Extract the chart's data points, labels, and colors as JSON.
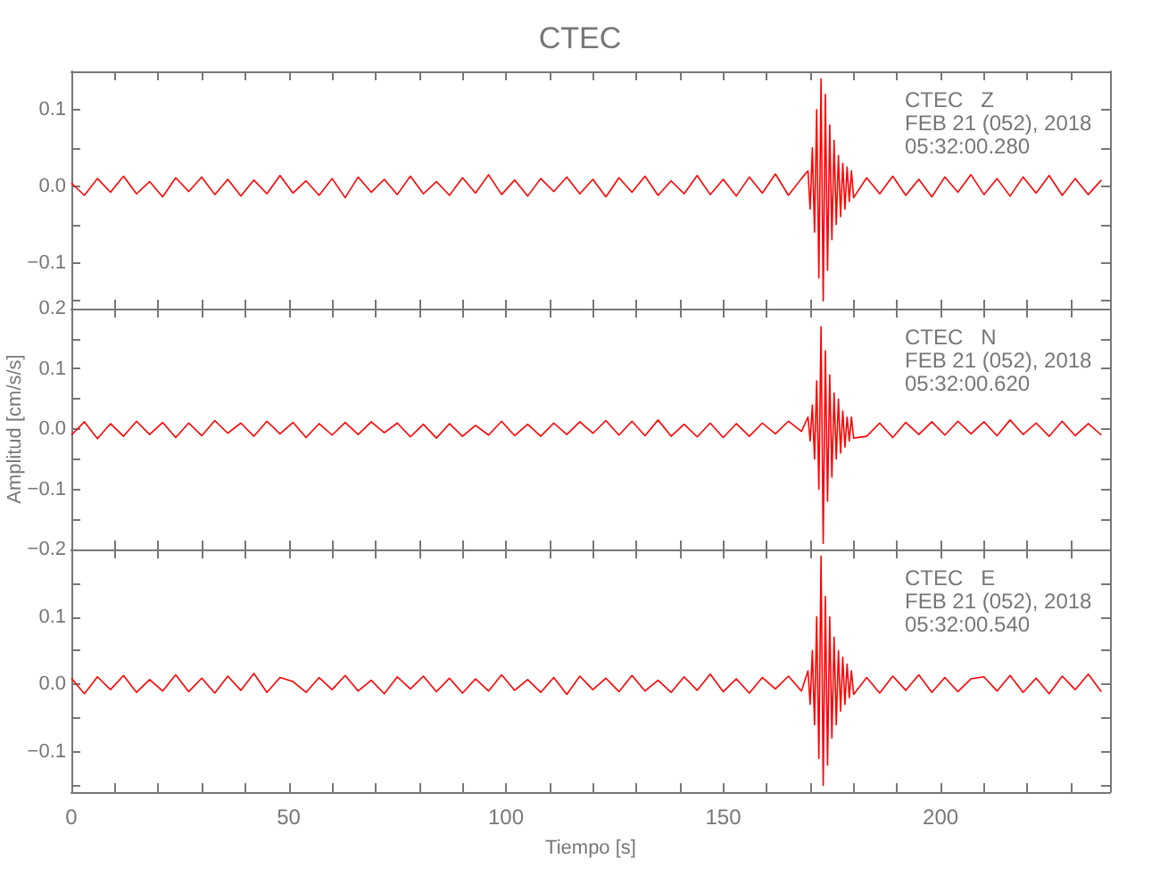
{
  "chart_data": [
    {
      "type": "line",
      "title": "CTEC",
      "tick_labels": "y",
      "annotations": [
        "CTEC   Z",
        "FEB 21 (052), 2018",
        "05:32:00.280"
      ],
      "x": [
        0,
        3,
        6,
        9,
        12,
        15,
        18,
        21,
        24,
        27,
        30,
        33,
        36,
        39,
        42,
        45,
        48,
        51,
        54,
        57,
        60,
        63,
        66,
        69,
        72,
        75,
        78,
        81,
        84,
        87,
        90,
        93,
        96,
        99,
        102,
        105,
        108,
        111,
        114,
        117,
        120,
        123,
        126,
        129,
        132,
        135,
        138,
        141,
        144,
        147,
        150,
        153,
        156,
        159,
        162,
        165,
        168,
        169.5,
        170,
        170.5,
        171,
        171.5,
        172,
        172.5,
        173,
        173.5,
        174,
        174.5,
        175,
        175.5,
        176,
        176.5,
        177,
        177.5,
        178,
        178.5,
        179,
        179.5,
        180,
        183,
        186,
        189,
        192,
        195,
        198,
        201,
        204,
        207,
        210,
        213,
        216,
        219,
        222,
        225,
        228,
        231,
        234,
        237
      ],
      "series": [
        {
          "color": "#ff0000",
          "values": [
            0.004,
            -0.012,
            0.01,
            -0.008,
            0.013,
            -0.01,
            0.006,
            -0.014,
            0.011,
            -0.007,
            0.012,
            -0.011,
            0.009,
            -0.013,
            0.008,
            -0.01,
            0.014,
            -0.009,
            0.007,
            -0.012,
            0.01,
            -0.015,
            0.012,
            -0.008,
            0.009,
            -0.011,
            0.013,
            -0.01,
            0.006,
            -0.012,
            0.011,
            -0.009,
            0.015,
            -0.011,
            0.008,
            -0.013,
            0.01,
            -0.007,
            0.012,
            -0.01,
            0.009,
            -0.014,
            0.011,
            -0.008,
            0.013,
            -0.012,
            0.007,
            -0.01,
            0.014,
            -0.011,
            0.009,
            -0.013,
            0.012,
            -0.009,
            0.016,
            -0.012,
            0.01,
            0.02,
            -0.03,
            0.05,
            -0.06,
            0.1,
            -0.12,
            0.14,
            -0.15,
            0.12,
            -0.11,
            0.08,
            -0.07,
            0.06,
            -0.05,
            0.04,
            -0.04,
            0.03,
            -0.03,
            0.025,
            -0.02,
            0.02,
            -0.015,
            0.011,
            -0.01,
            0.013,
            -0.012,
            0.009,
            -0.014,
            0.012,
            -0.008,
            0.015,
            -0.011,
            0.01,
            -0.013,
            0.012,
            -0.009,
            0.014,
            -0.012,
            0.01,
            -0.011,
            0.008
          ]
        }
      ],
      "xlim": [
        0,
        239
      ],
      "xticks": [
        0,
        {
          "value": 10,
          "label": null
        },
        {
          "value": 20,
          "label": null
        },
        {
          "value": 30,
          "label": null
        },
        {
          "value": 40,
          "label": null
        },
        50,
        {
          "value": 60,
          "label": null
        },
        {
          "value": 70,
          "label": null
        },
        {
          "value": 80,
          "label": null
        },
        {
          "value": 90,
          "label": null
        },
        100,
        {
          "value": 110,
          "label": null
        },
        {
          "value": 120,
          "label": null
        },
        {
          "value": 130,
          "label": null
        },
        {
          "value": 140,
          "label": null
        },
        150,
        {
          "value": 160,
          "label": null
        },
        {
          "value": 170,
          "label": null
        },
        {
          "value": 180,
          "label": null
        },
        {
          "value": 190,
          "label": null
        },
        200,
        {
          "value": 210,
          "label": null
        },
        {
          "value": 220,
          "label": null
        },
        {
          "value": 230,
          "label": null
        }
      ],
      "ylim": [
        -0.16,
        0.15
      ],
      "yticks": [
        {
          "value": -0.15,
          "label": null
        },
        {
          "value": -0.1,
          "label": "−0.1"
        },
        {
          "value": -0.05,
          "label": null
        },
        {
          "value": 0,
          "label": "0.0"
        },
        {
          "value": 0.05,
          "label": null
        },
        {
          "value": 0.1,
          "label": "0.1"
        }
      ]
    },
    {
      "type": "line",
      "ylabel": "Amplitud [cm/s/s]",
      "tick_labels": "y",
      "annotations": [
        "CTEC   N",
        "FEB 21 (052), 2018",
        "05:32:00.620"
      ],
      "x": [
        0,
        3,
        6,
        9,
        12,
        15,
        18,
        21,
        24,
        27,
        30,
        33,
        36,
        39,
        42,
        45,
        48,
        51,
        54,
        57,
        60,
        63,
        66,
        69,
        72,
        75,
        78,
        81,
        84,
        87,
        90,
        93,
        96,
        99,
        102,
        105,
        108,
        111,
        114,
        117,
        120,
        123,
        126,
        129,
        132,
        135,
        138,
        141,
        144,
        147,
        150,
        153,
        156,
        159,
        162,
        165,
        168,
        169.5,
        170,
        170.5,
        171,
        171.5,
        172,
        172.5,
        173,
        173.5,
        174,
        174.5,
        175,
        175.5,
        176,
        176.5,
        177,
        177.5,
        178,
        178.5,
        179,
        179.5,
        180,
        183,
        186,
        189,
        192,
        195,
        198,
        201,
        204,
        207,
        210,
        213,
        216,
        219,
        222,
        225,
        228,
        231,
        234,
        237
      ],
      "series": [
        {
          "color": "#ff0000",
          "values": [
            -0.01,
            0.012,
            -0.016,
            0.009,
            -0.012,
            0.013,
            -0.009,
            0.011,
            -0.014,
            0.01,
            -0.011,
            0.014,
            -0.007,
            0.01,
            -0.012,
            0.013,
            -0.008,
            0.011,
            -0.014,
            0.009,
            -0.01,
            0.011,
            -0.009,
            0.012,
            -0.006,
            0.01,
            -0.013,
            0.008,
            -0.015,
            0.009,
            -0.012,
            0.006,
            -0.01,
            0.013,
            -0.011,
            0.008,
            -0.012,
            0.01,
            -0.009,
            0.012,
            -0.007,
            0.014,
            -0.01,
            0.013,
            -0.011,
            0.015,
            -0.012,
            0.008,
            -0.013,
            0.01,
            -0.014,
            0.009,
            -0.012,
            0.01,
            -0.008,
            0.013,
            -0.004,
            0.02,
            -0.02,
            0.04,
            -0.05,
            0.08,
            -0.1,
            0.17,
            -0.19,
            0.13,
            -0.12,
            0.09,
            -0.08,
            0.06,
            -0.05,
            0.05,
            -0.04,
            0.03,
            -0.03,
            0.02,
            -0.02,
            0.02,
            -0.015,
            -0.012,
            0.01,
            -0.014,
            0.011,
            -0.009,
            0.012,
            -0.01,
            0.013,
            -0.008,
            0.012,
            -0.011,
            0.015,
            -0.009,
            0.01,
            -0.012,
            0.013,
            -0.011,
            0.009,
            -0.01
          ]
        }
      ],
      "xlim": [
        0,
        239
      ],
      "xticks": [
        0,
        {
          "value": 10,
          "label": null
        },
        {
          "value": 20,
          "label": null
        },
        {
          "value": 30,
          "label": null
        },
        {
          "value": 40,
          "label": null
        },
        50,
        {
          "value": 60,
          "label": null
        },
        {
          "value": 70,
          "label": null
        },
        {
          "value": 80,
          "label": null
        },
        {
          "value": 90,
          "label": null
        },
        100,
        {
          "value": 110,
          "label": null
        },
        {
          "value": 120,
          "label": null
        },
        {
          "value": 130,
          "label": null
        },
        {
          "value": 140,
          "label": null
        },
        150,
        {
          "value": 160,
          "label": null
        },
        {
          "value": 170,
          "label": null
        },
        {
          "value": 180,
          "label": null
        },
        {
          "value": 190,
          "label": null
        },
        200,
        {
          "value": 210,
          "label": null
        },
        {
          "value": 220,
          "label": null
        },
        {
          "value": 230,
          "label": null
        }
      ],
      "ylim": [
        -0.2,
        0.2
      ],
      "yticks": [
        {
          "value": -0.2,
          "label": "−0.2"
        },
        {
          "value": -0.15,
          "label": null
        },
        {
          "value": -0.1,
          "label": "−0.1"
        },
        {
          "value": -0.05,
          "label": null
        },
        {
          "value": 0,
          "label": "0.0"
        },
        {
          "value": 0.05,
          "label": null
        },
        {
          "value": 0.1,
          "label": "0.1"
        },
        {
          "value": 0.15,
          "label": null
        },
        {
          "value": 0.2,
          "label": "0.2"
        }
      ]
    },
    {
      "type": "line",
      "xlabel": "Tiempo [s]",
      "annotations": [
        "CTEC   E",
        "FEB 21 (052), 2018",
        "05:32:00.540"
      ],
      "x": [
        0,
        3,
        6,
        9,
        12,
        15,
        18,
        21,
        24,
        27,
        30,
        33,
        36,
        39,
        42,
        45,
        48,
        51,
        54,
        57,
        60,
        63,
        66,
        69,
        72,
        75,
        78,
        81,
        84,
        87,
        90,
        93,
        96,
        99,
        102,
        105,
        108,
        111,
        114,
        117,
        120,
        123,
        126,
        129,
        132,
        135,
        138,
        141,
        144,
        147,
        150,
        153,
        156,
        159,
        162,
        165,
        168,
        169.5,
        170,
        170.5,
        171,
        171.5,
        172,
        172.5,
        173,
        173.5,
        174,
        174.5,
        175,
        175.5,
        176,
        176.5,
        177,
        177.5,
        178,
        178.5,
        179,
        179.5,
        180,
        183,
        186,
        189,
        192,
        195,
        198,
        201,
        204,
        207,
        210,
        213,
        216,
        219,
        222,
        225,
        228,
        231,
        234,
        237
      ],
      "series": [
        {
          "color": "#ff0000",
          "values": [
            0.009,
            -0.014,
            0.011,
            -0.008,
            0.013,
            -0.012,
            0.007,
            -0.01,
            0.014,
            -0.011,
            0.009,
            -0.013,
            0.012,
            -0.009,
            0.016,
            -0.012,
            0.01,
            0.004,
            -0.012,
            0.01,
            -0.008,
            0.013,
            -0.01,
            0.006,
            -0.014,
            0.011,
            -0.007,
            0.012,
            -0.011,
            0.009,
            -0.013,
            0.008,
            -0.01,
            0.014,
            -0.009,
            0.007,
            -0.012,
            0.01,
            -0.015,
            0.012,
            -0.008,
            0.009,
            -0.011,
            0.013,
            -0.01,
            0.006,
            -0.012,
            0.011,
            -0.009,
            0.015,
            -0.011,
            0.008,
            -0.013,
            0.01,
            -0.007,
            0.012,
            -0.01,
            0.02,
            -0.03,
            0.05,
            -0.06,
            0.1,
            -0.11,
            0.19,
            -0.15,
            0.13,
            -0.12,
            0.1,
            -0.08,
            0.07,
            -0.06,
            0.05,
            -0.04,
            0.04,
            -0.03,
            0.03,
            -0.02,
            0.02,
            -0.015,
            0.01,
            -0.013,
            0.012,
            -0.009,
            0.014,
            -0.012,
            0.01,
            -0.011,
            0.008,
            0.011,
            -0.01,
            0.013,
            -0.012,
            0.009,
            -0.014,
            0.012,
            -0.008,
            0.015,
            -0.011
          ]
        }
      ],
      "xlim": [
        0,
        239
      ],
      "xticks": [
        0,
        {
          "value": 10,
          "label": null
        },
        {
          "value": 20,
          "label": null
        },
        {
          "value": 30,
          "label": null
        },
        {
          "value": 40,
          "label": null
        },
        50,
        {
          "value": 60,
          "label": null
        },
        {
          "value": 70,
          "label": null
        },
        {
          "value": 80,
          "label": null
        },
        {
          "value": 90,
          "label": null
        },
        100,
        {
          "value": 110,
          "label": null
        },
        {
          "value": 120,
          "label": null
        },
        {
          "value": 130,
          "label": null
        },
        {
          "value": 140,
          "label": null
        },
        150,
        {
          "value": 160,
          "label": null
        },
        {
          "value": 170,
          "label": null
        },
        {
          "value": 180,
          "label": null
        },
        {
          "value": 190,
          "label": null
        },
        200,
        {
          "value": 210,
          "label": null
        },
        {
          "value": 220,
          "label": null
        },
        {
          "value": 230,
          "label": null
        }
      ],
      "ylim": [
        -0.16,
        0.2
      ],
      "yticks": [
        {
          "value": -0.15,
          "label": null
        },
        {
          "value": -0.1,
          "label": "−0.1"
        },
        {
          "value": -0.05,
          "label": null
        },
        {
          "value": 0,
          "label": "0.0"
        },
        {
          "value": 0.05,
          "label": null
        },
        {
          "value": 0.1,
          "label": "0.1"
        },
        {
          "value": 0.15,
          "label": null
        }
      ]
    }
  ]
}
